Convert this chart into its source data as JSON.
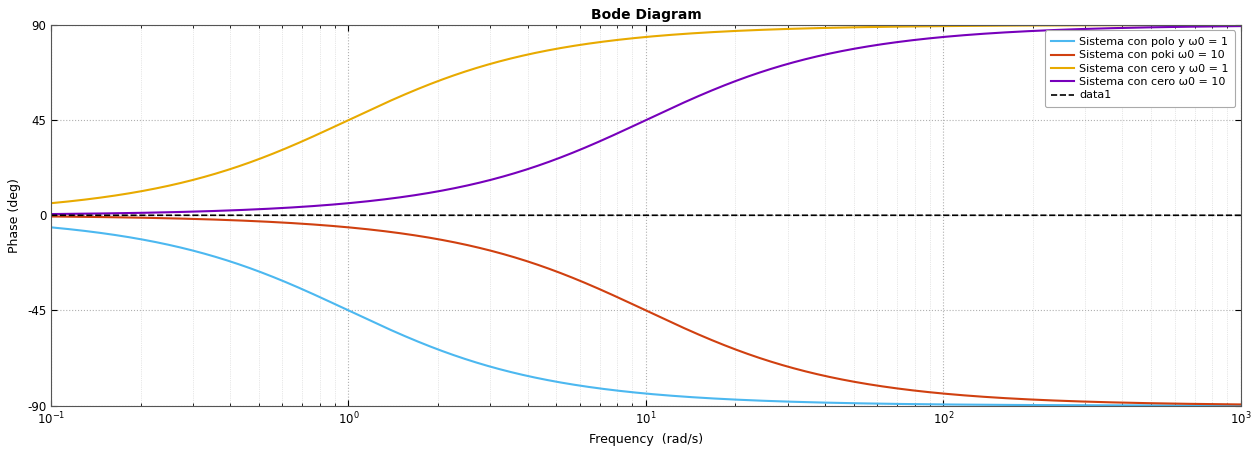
{
  "title": "Bode Diagram",
  "xlabel": "Frequency  (rad/s)",
  "ylabel": "Phase (deg)",
  "xlim_log": [
    -1,
    3
  ],
  "ylim": [
    -90,
    90
  ],
  "yticks": [
    -90,
    -45,
    0,
    45,
    90
  ],
  "bg_color": "#ffffff",
  "plot_bg_color": "#ffffff",
  "grid_color": "#b0b0b0",
  "grid_minor_color": "#d0d0d0",
  "legend": [
    {
      "label": "Sistema con polo y ω0 = 1",
      "color": "#4cb8f0",
      "lw": 1.5,
      "ls": "-"
    },
    {
      "label": "Sistema con poki ω0 = 10",
      "color": "#d04010",
      "lw": 1.5,
      "ls": "-"
    },
    {
      "label": "Sistema con cero y ω0 = 1",
      "color": "#e8aa00",
      "lw": 1.5,
      "ls": "-"
    },
    {
      "label": "Sistema con cero ω0 = 10",
      "color": "#7700bb",
      "lw": 1.5,
      "ls": "-"
    },
    {
      "label": "data1",
      "color": "#000000",
      "lw": 1.2,
      "ls": "--"
    }
  ],
  "omega0_pole1": 1,
  "omega0_pole10": 10,
  "omega0_zero1": 1,
  "omega0_zero10": 10,
  "title_fontsize": 10,
  "axis_label_fontsize": 9,
  "tick_fontsize": 8.5,
  "legend_fontsize": 8
}
